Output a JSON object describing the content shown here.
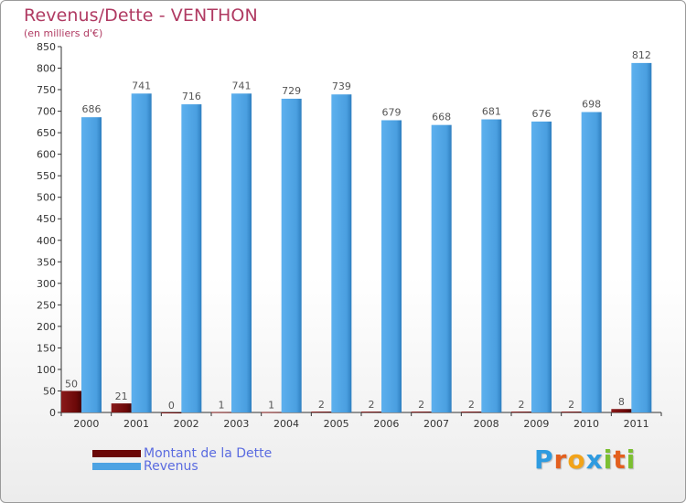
{
  "title": "Revenus/Dette - VENTHON",
  "subtitle": "(en milliers d'€)",
  "legend": [
    {
      "label": "Montant de la Dette",
      "color": "#6b0808"
    },
    {
      "label": "Revenus",
      "color": "#4da3e3"
    }
  ],
  "logo": {
    "text": "Proxiti",
    "letters": [
      "P",
      "r",
      "o",
      "x",
      "i",
      "t",
      "i"
    ],
    "colors": [
      "#2e9be0",
      "#e35f1e",
      "#f2a319",
      "#2e9be0",
      "#7cbf31",
      "#e35f1e",
      "#7cbf31"
    ]
  },
  "chart_data": {
    "type": "bar",
    "title": "Revenus/Dette - VENTHON",
    "ylabel": "(en milliers d'€)",
    "xlabel": "",
    "categories": [
      "2000",
      "2001",
      "2002",
      "2003",
      "2004",
      "2005",
      "2006",
      "2007",
      "2008",
      "2009",
      "2010",
      "2011"
    ],
    "series": [
      {
        "name": "Montant de la Dette",
        "color": "#6b0808",
        "values": [
          50,
          21,
          0,
          1,
          1,
          2,
          2,
          2,
          2,
          2,
          2,
          8
        ]
      },
      {
        "name": "Revenus",
        "color": "#4da3e3",
        "values": [
          686,
          741,
          716,
          741,
          729,
          739,
          679,
          668,
          681,
          676,
          698,
          812
        ]
      }
    ],
    "ylim": [
      0,
      850
    ],
    "yticks": [
      0,
      50,
      100,
      150,
      200,
      250,
      300,
      350,
      400,
      450,
      500,
      550,
      600,
      650,
      700,
      750,
      800,
      850
    ],
    "grid": false,
    "legend_position": "bottom-left"
  }
}
